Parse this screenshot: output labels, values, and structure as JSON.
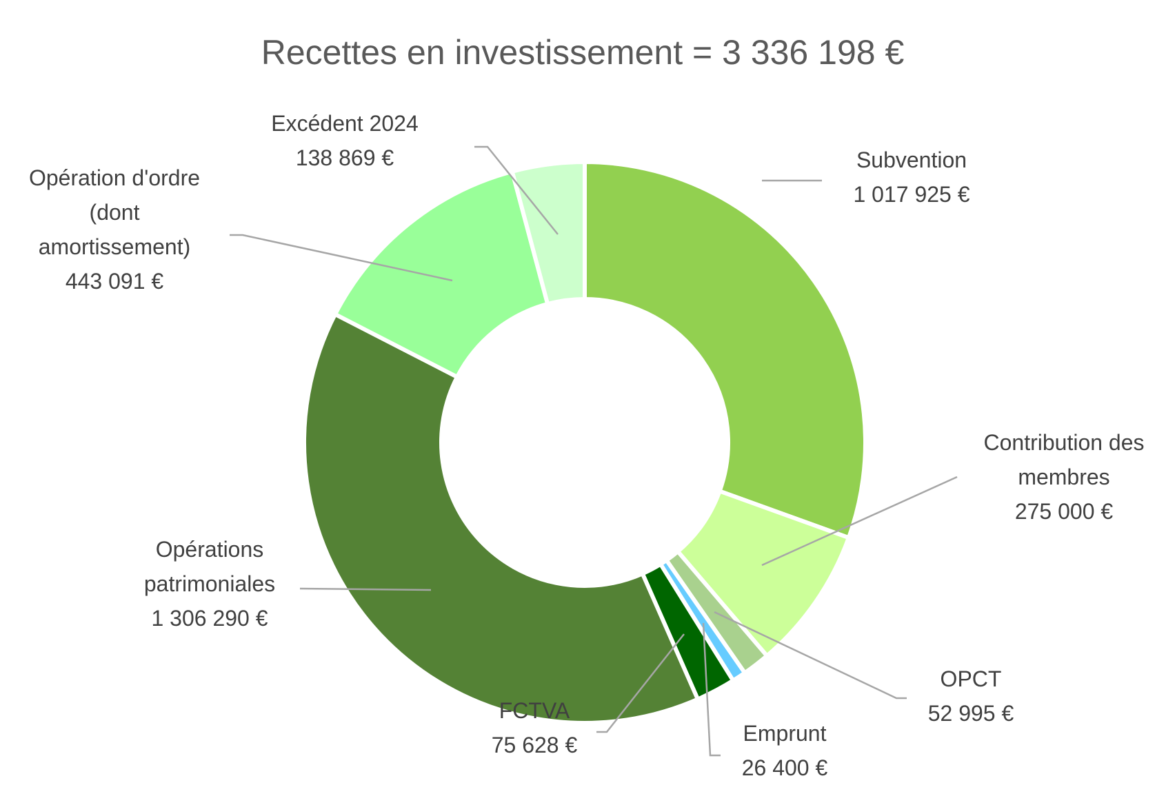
{
  "chart_data": {
    "type": "pie",
    "variant": "doughnut",
    "title": "Recettes en investissement = 3 336 198 €",
    "legend": "none",
    "slices": [
      {
        "name": "Subvention",
        "value": 1017925,
        "value_label": "1 017 925 €",
        "label_lines": [
          "Subvention",
          "1 017 925 €"
        ],
        "color": "#92d050"
      },
      {
        "name": "Contribution des membres",
        "value": 275000,
        "value_label": "275 000 €",
        "label_lines": [
          "Contribution des",
          "membres",
          "275 000 €"
        ],
        "color": "#ccff99"
      },
      {
        "name": "OPCT",
        "value": 52995,
        "value_label": "52 995 €",
        "label_lines": [
          "OPCT",
          "52 995 €"
        ],
        "color": "#a9d18e"
      },
      {
        "name": "Emprunt",
        "value": 26400,
        "value_label": "26 400 €",
        "label_lines": [
          "Emprunt",
          "26 400 €"
        ],
        "color": "#66ccff"
      },
      {
        "name": "FCTVA",
        "value": 75628,
        "value_label": "75 628 €",
        "label_lines": [
          "FCTVA",
          "75 628 €"
        ],
        "color": "#006600"
      },
      {
        "name": "Opérations patrimoniales",
        "value": 1306290,
        "value_label": "1 306 290 €",
        "label_lines": [
          "Opérations",
          "patrimoniales",
          "1 306 290 €"
        ],
        "color": "#548235"
      },
      {
        "name": "Opération d'ordre (dont amortissement)",
        "value": 443091,
        "value_label": "443 091 €",
        "label_lines": [
          "Opération d'ordre",
          "(dont",
          "amortissement)",
          "443 091 €"
        ],
        "color": "#99ff99"
      },
      {
        "name": "Excédent 2024",
        "value": 138869,
        "value_label": "138 869 €",
        "label_lines": [
          "Excédent 2024",
          "138 869 €"
        ],
        "color": "#ccffcc"
      }
    ]
  }
}
